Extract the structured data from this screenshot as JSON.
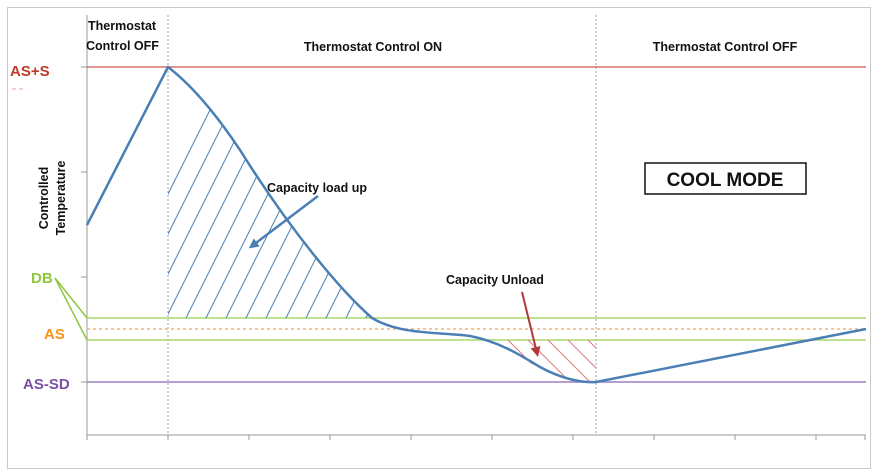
{
  "header": {
    "left_line1": "Thermostat",
    "left_line2": "Control OFF",
    "middle": "Thermostat Control ON",
    "right": "Thermostat Control OFF"
  },
  "y_axis_label_line1": "Controlled",
  "y_axis_label_line2": "Temperature",
  "levels": {
    "as_plus_s": "AS+S",
    "db": "DB",
    "as": "AS",
    "as_minus_sd": "AS-SD"
  },
  "annotations": {
    "load_up": "Capacity load up",
    "unload": "Capacity Unload",
    "mode": "COOL MODE"
  },
  "colors": {
    "as_plus_s": "#c0392b",
    "db": "#8dc63f",
    "as": "#f7941d",
    "as_minus_sd": "#7b4fa2",
    "curve": "#4a7fb5",
    "load_hatch": "#4a7fb5",
    "unload_hatch": "#d9534f",
    "unload_arrow": "#b03a3a"
  }
}
